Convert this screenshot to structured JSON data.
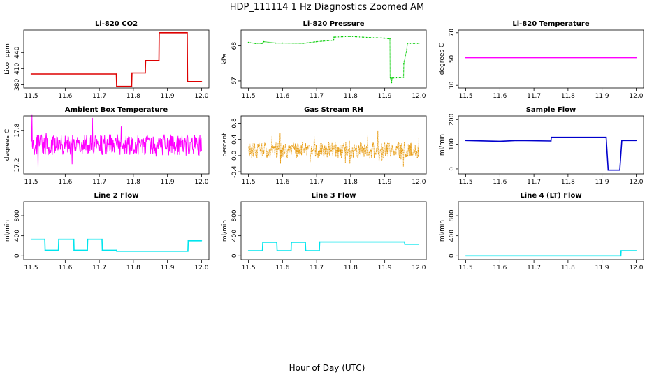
{
  "figure": {
    "title": "HDP_111114  1 Hz Diagnostics Zoomed AM",
    "xlabel": "Hour of Day (UTC)"
  },
  "chart_data": [
    {
      "type": "line",
      "title": "Li-820 CO2",
      "ylabel": "Licor ppm",
      "color": "#dd0000",
      "xlim": [
        11.5,
        12.0
      ],
      "ylim": [
        374,
        482
      ],
      "xticks": [
        11.5,
        11.6,
        11.7,
        11.8,
        11.9,
        12.0
      ],
      "yticks": [
        380,
        410,
        440
      ],
      "style": "line",
      "series": [
        {
          "x": [
            11.5,
            11.75,
            11.751,
            11.795,
            11.796,
            11.835,
            11.836,
            11.875,
            11.876,
            11.958,
            11.959,
            12.0
          ],
          "y": [
            400,
            400,
            377,
            377,
            402,
            402,
            425,
            425,
            477,
            477,
            386,
            386
          ]
        }
      ]
    },
    {
      "type": "line",
      "title": "Li-820 Pressure",
      "ylabel": "kPa",
      "color": "#00cc00",
      "xlim": [
        11.5,
        12.0
      ],
      "ylim": [
        66.8,
        68.45
      ],
      "xticks": [
        11.5,
        11.6,
        11.7,
        11.8,
        11.9,
        12.0
      ],
      "yticks": [
        67.0,
        68.0
      ],
      "style": "points",
      "series": [
        {
          "x": [
            11.5,
            11.52,
            11.54,
            11.545,
            11.58,
            11.6,
            11.66,
            11.7,
            11.75,
            11.751,
            11.8,
            11.85,
            11.9,
            11.915,
            11.916,
            11.92,
            11.921,
            11.955,
            11.956,
            11.965,
            11.966,
            12.0
          ],
          "y": [
            68.1,
            68.07,
            68.07,
            68.12,
            68.08,
            68.08,
            68.07,
            68.12,
            68.16,
            68.25,
            68.27,
            68.24,
            68.22,
            68.2,
            67.1,
            66.95,
            67.08,
            67.1,
            67.5,
            67.9,
            68.07,
            68.07
          ]
        }
      ]
    },
    {
      "type": "line",
      "title": "Li-820 Temperature",
      "ylabel": "degrees C",
      "color": "#ff00ff",
      "xlim": [
        11.5,
        12.0
      ],
      "ylim": [
        28,
        72
      ],
      "xticks": [
        11.5,
        11.6,
        11.7,
        11.8,
        11.9,
        12.0
      ],
      "yticks": [
        30,
        50,
        70
      ],
      "style": "line",
      "series": [
        {
          "x": [
            11.5,
            12.0
          ],
          "y": [
            51,
            51
          ]
        }
      ]
    },
    {
      "type": "line",
      "title": "Ambient Box Temperature",
      "ylabel": "degrees C",
      "color": "#ff00ff",
      "xlim": [
        11.5,
        12.0
      ],
      "ylim": [
        17.05,
        18.05
      ],
      "xticks": [
        11.5,
        11.6,
        11.7,
        11.8,
        11.9,
        12.0
      ],
      "yticks": [
        17.2,
        17.8
      ],
      "style": "noise",
      "noise": {
        "center": 17.55,
        "amplitude": 0.18,
        "spike": 0.45,
        "density": 1.0
      }
    },
    {
      "type": "scatter",
      "title": "Gas Stream RH",
      "ylabel": "percent",
      "color": "#e69500",
      "xlim": [
        11.5,
        12.0
      ],
      "ylim": [
        -0.45,
        0.98
      ],
      "xticks": [
        11.5,
        11.6,
        11.7,
        11.8,
        11.9,
        12.0
      ],
      "yticks": [
        -0.4,
        0.0,
        0.4,
        0.8
      ],
      "style": "noise-points",
      "noise": {
        "center": 0.13,
        "amplitude": 0.2,
        "spike": 0.38,
        "density": 0.9
      }
    },
    {
      "type": "line",
      "title": "Sample Flow",
      "ylabel": "ml/min",
      "color": "#0000cc",
      "xlim": [
        11.5,
        12.0
      ],
      "ylim": [
        -20,
        215
      ],
      "xticks": [
        11.5,
        11.6,
        11.7,
        11.8,
        11.9,
        12.0
      ],
      "yticks": [
        0,
        100,
        200
      ],
      "style": "line",
      "series": [
        {
          "x": [
            11.5,
            11.6,
            11.65,
            11.75,
            11.751,
            11.912,
            11.918,
            11.952,
            11.958,
            12.0
          ],
          "y": [
            115,
            112,
            115,
            113,
            128,
            128,
            -5,
            -5,
            115,
            115
          ]
        }
      ]
    },
    {
      "type": "line",
      "title": "Line 2 Flow",
      "ylabel": "ml/min",
      "color": "#00e5ee",
      "xlim": [
        11.5,
        12.0
      ],
      "ylim": [
        -80,
        1080
      ],
      "xticks": [
        11.5,
        11.6,
        11.7,
        11.8,
        11.9,
        12.0
      ],
      "yticks": [
        0,
        400,
        800
      ],
      "style": "line",
      "series": [
        {
          "x": [
            11.5,
            11.54,
            11.541,
            11.58,
            11.581,
            11.625,
            11.626,
            11.665,
            11.666,
            11.708,
            11.709,
            11.75,
            11.751,
            11.96,
            11.961,
            12.0
          ],
          "y": [
            330,
            330,
            110,
            110,
            330,
            330,
            110,
            110,
            330,
            330,
            110,
            110,
            90,
            90,
            300,
            300
          ]
        }
      ]
    },
    {
      "type": "line",
      "title": "Line 3 Flow",
      "ylabel": "ml/min",
      "color": "#00e5ee",
      "xlim": [
        11.5,
        12.0
      ],
      "ylim": [
        -80,
        1080
      ],
      "xticks": [
        11.5,
        11.6,
        11.7,
        11.8,
        11.9,
        12.0
      ],
      "yticks": [
        0,
        400,
        800
      ],
      "style": "line",
      "series": [
        {
          "x": [
            11.5,
            11.541,
            11.542,
            11.583,
            11.584,
            11.625,
            11.626,
            11.667,
            11.668,
            11.708,
            11.709,
            11.958,
            11.959,
            12.0
          ],
          "y": [
            100,
            100,
            270,
            270,
            100,
            100,
            270,
            270,
            100,
            100,
            275,
            275,
            230,
            230
          ]
        }
      ]
    },
    {
      "type": "line",
      "title": "Line 4 (LT) Flow",
      "ylabel": "ml/min",
      "color": "#00e5ee",
      "xlim": [
        11.5,
        12.0
      ],
      "ylim": [
        -80,
        1080
      ],
      "xticks": [
        11.5,
        11.6,
        11.7,
        11.8,
        11.9,
        12.0
      ],
      "yticks": [
        0,
        400,
        800
      ],
      "style": "line",
      "series": [
        {
          "x": [
            11.5,
            11.955,
            11.956,
            12.0
          ],
          "y": [
            0,
            0,
            100,
            100
          ]
        }
      ]
    }
  ]
}
